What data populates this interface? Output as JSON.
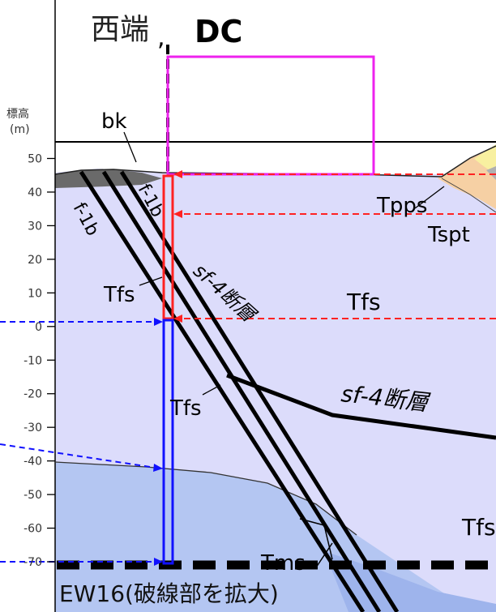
{
  "title": {
    "west_end": "西端",
    "dc": "DC"
  },
  "axis": {
    "label_line1": "標高",
    "label_line2": "(m)",
    "ticks": [
      {
        "value": 50,
        "label": "50"
      },
      {
        "value": 40,
        "label": "40"
      },
      {
        "value": 30,
        "label": "30"
      },
      {
        "value": 20,
        "label": "20"
      },
      {
        "value": 10,
        "label": "10"
      },
      {
        "value": 0,
        "label": "0"
      },
      {
        "value": -10,
        "label": "-10"
      },
      {
        "value": -20,
        "label": "-20"
      },
      {
        "value": -30,
        "label": "-30"
      },
      {
        "value": -40,
        "label": "-40"
      },
      {
        "value": -50,
        "label": "-50"
      },
      {
        "value": -60,
        "label": "-60"
      },
      {
        "value": -70,
        "label": "-70"
      }
    ]
  },
  "labels": {
    "bk": "bk",
    "f1b_left": "f-1b",
    "f1b_right": "f-1b",
    "tfs_upper_left": "Tfs",
    "sf4_upper": "sf-4断層",
    "tfs_center": "Tfs",
    "tpps": "Tpps",
    "tspt": "Tspt",
    "tfs_mid": "Tfs",
    "sf4_lower": "sf-4断層",
    "tfs_right": "Tfs",
    "tms": "Tms"
  },
  "caption": "EW16(破線部を拡大)",
  "colors": {
    "lavender": "#dcdcfb",
    "blue_layer": "#b4c6f2",
    "deep_blue": "#9eb4ec",
    "magenta": "#ee22ee",
    "red": "#ff2222",
    "blue": "#1111ff",
    "dark_gray": "#6a6a6a",
    "orange": "#f6d0a4",
    "yellow": "#f8f0a0"
  }
}
